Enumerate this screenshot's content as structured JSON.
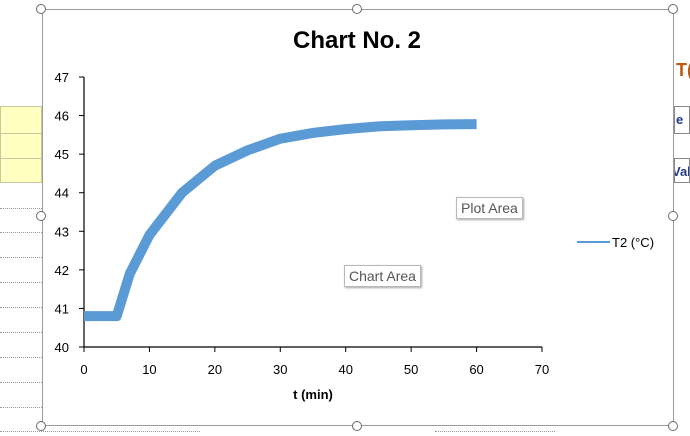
{
  "chart_data": {
    "type": "line",
    "title": "Chart No. 2",
    "xlabel": "t (min)",
    "ylabel": "",
    "xlim": [
      0,
      70
    ],
    "ylim": [
      40,
      47
    ],
    "xticks": [
      0,
      10,
      20,
      30,
      40,
      50,
      60,
      70
    ],
    "yticks": [
      40,
      41,
      42,
      43,
      44,
      45,
      46,
      47
    ],
    "grid": false,
    "legend": "right",
    "series": [
      {
        "name": "T2 (°C)",
        "color": "#5b9bd5",
        "x": [
          0,
          2,
          5,
          7,
          10,
          15,
          20,
          25,
          30,
          35,
          40,
          45,
          50,
          55,
          60
        ],
        "y": [
          40.8,
          40.8,
          40.8,
          41.9,
          42.9,
          44.0,
          44.7,
          45.1,
          45.4,
          45.55,
          45.65,
          45.72,
          45.75,
          45.77,
          45.78
        ]
      }
    ]
  },
  "chart_tooltips": {
    "plot_area": "Plot Area",
    "chart_area": "Chart Area"
  },
  "sheet": {
    "right_col_letter_1": "T(",
    "right_col_letter_2": "e",
    "right_col_letter_3": "Val"
  }
}
